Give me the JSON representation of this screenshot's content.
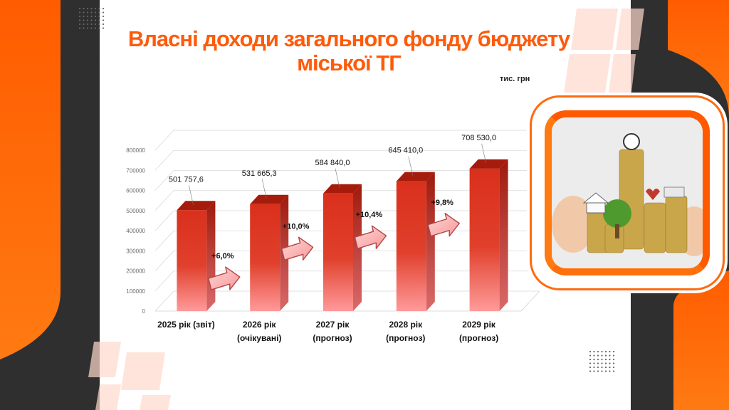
{
  "slide": {
    "title_line1": "Власні доходи загального фонду бюджету",
    "title_line2": "міської ТГ",
    "unit": "тис. грн",
    "photo": "budget-coins-photo"
  },
  "colors": {
    "accent": "#ff5a0a",
    "bar_top": "#d9301c",
    "bar_bottom": "#ff8f8f",
    "dark": "#2f2f2f"
  },
  "chart_data": {
    "type": "bar",
    "categories": [
      [
        "2025 рік (звіт)"
      ],
      [
        "2026 рік",
        "(очікувані)"
      ],
      [
        "2027 рік",
        "(прогноз)"
      ],
      [
        "2028 рік",
        "(прогноз)"
      ],
      [
        "2029 рік",
        "(прогноз)"
      ]
    ],
    "values": [
      501757.6,
      531665.3,
      584840.0,
      645410.0,
      708530.0
    ],
    "value_labels": [
      "501 757,6",
      "531 665,3",
      "584 840,0",
      "645 410,0",
      "708 530,0"
    ],
    "growth_labels": [
      "+6,0%",
      "+10,0%",
      "+10,4%",
      "+9,8%"
    ],
    "y_ticks": [
      "0",
      "100000",
      "200000",
      "300000",
      "400000",
      "500000",
      "600000",
      "700000",
      "800000"
    ],
    "ylim": [
      0,
      800000
    ],
    "style": "3d-column",
    "grid": true,
    "legend": "none"
  }
}
